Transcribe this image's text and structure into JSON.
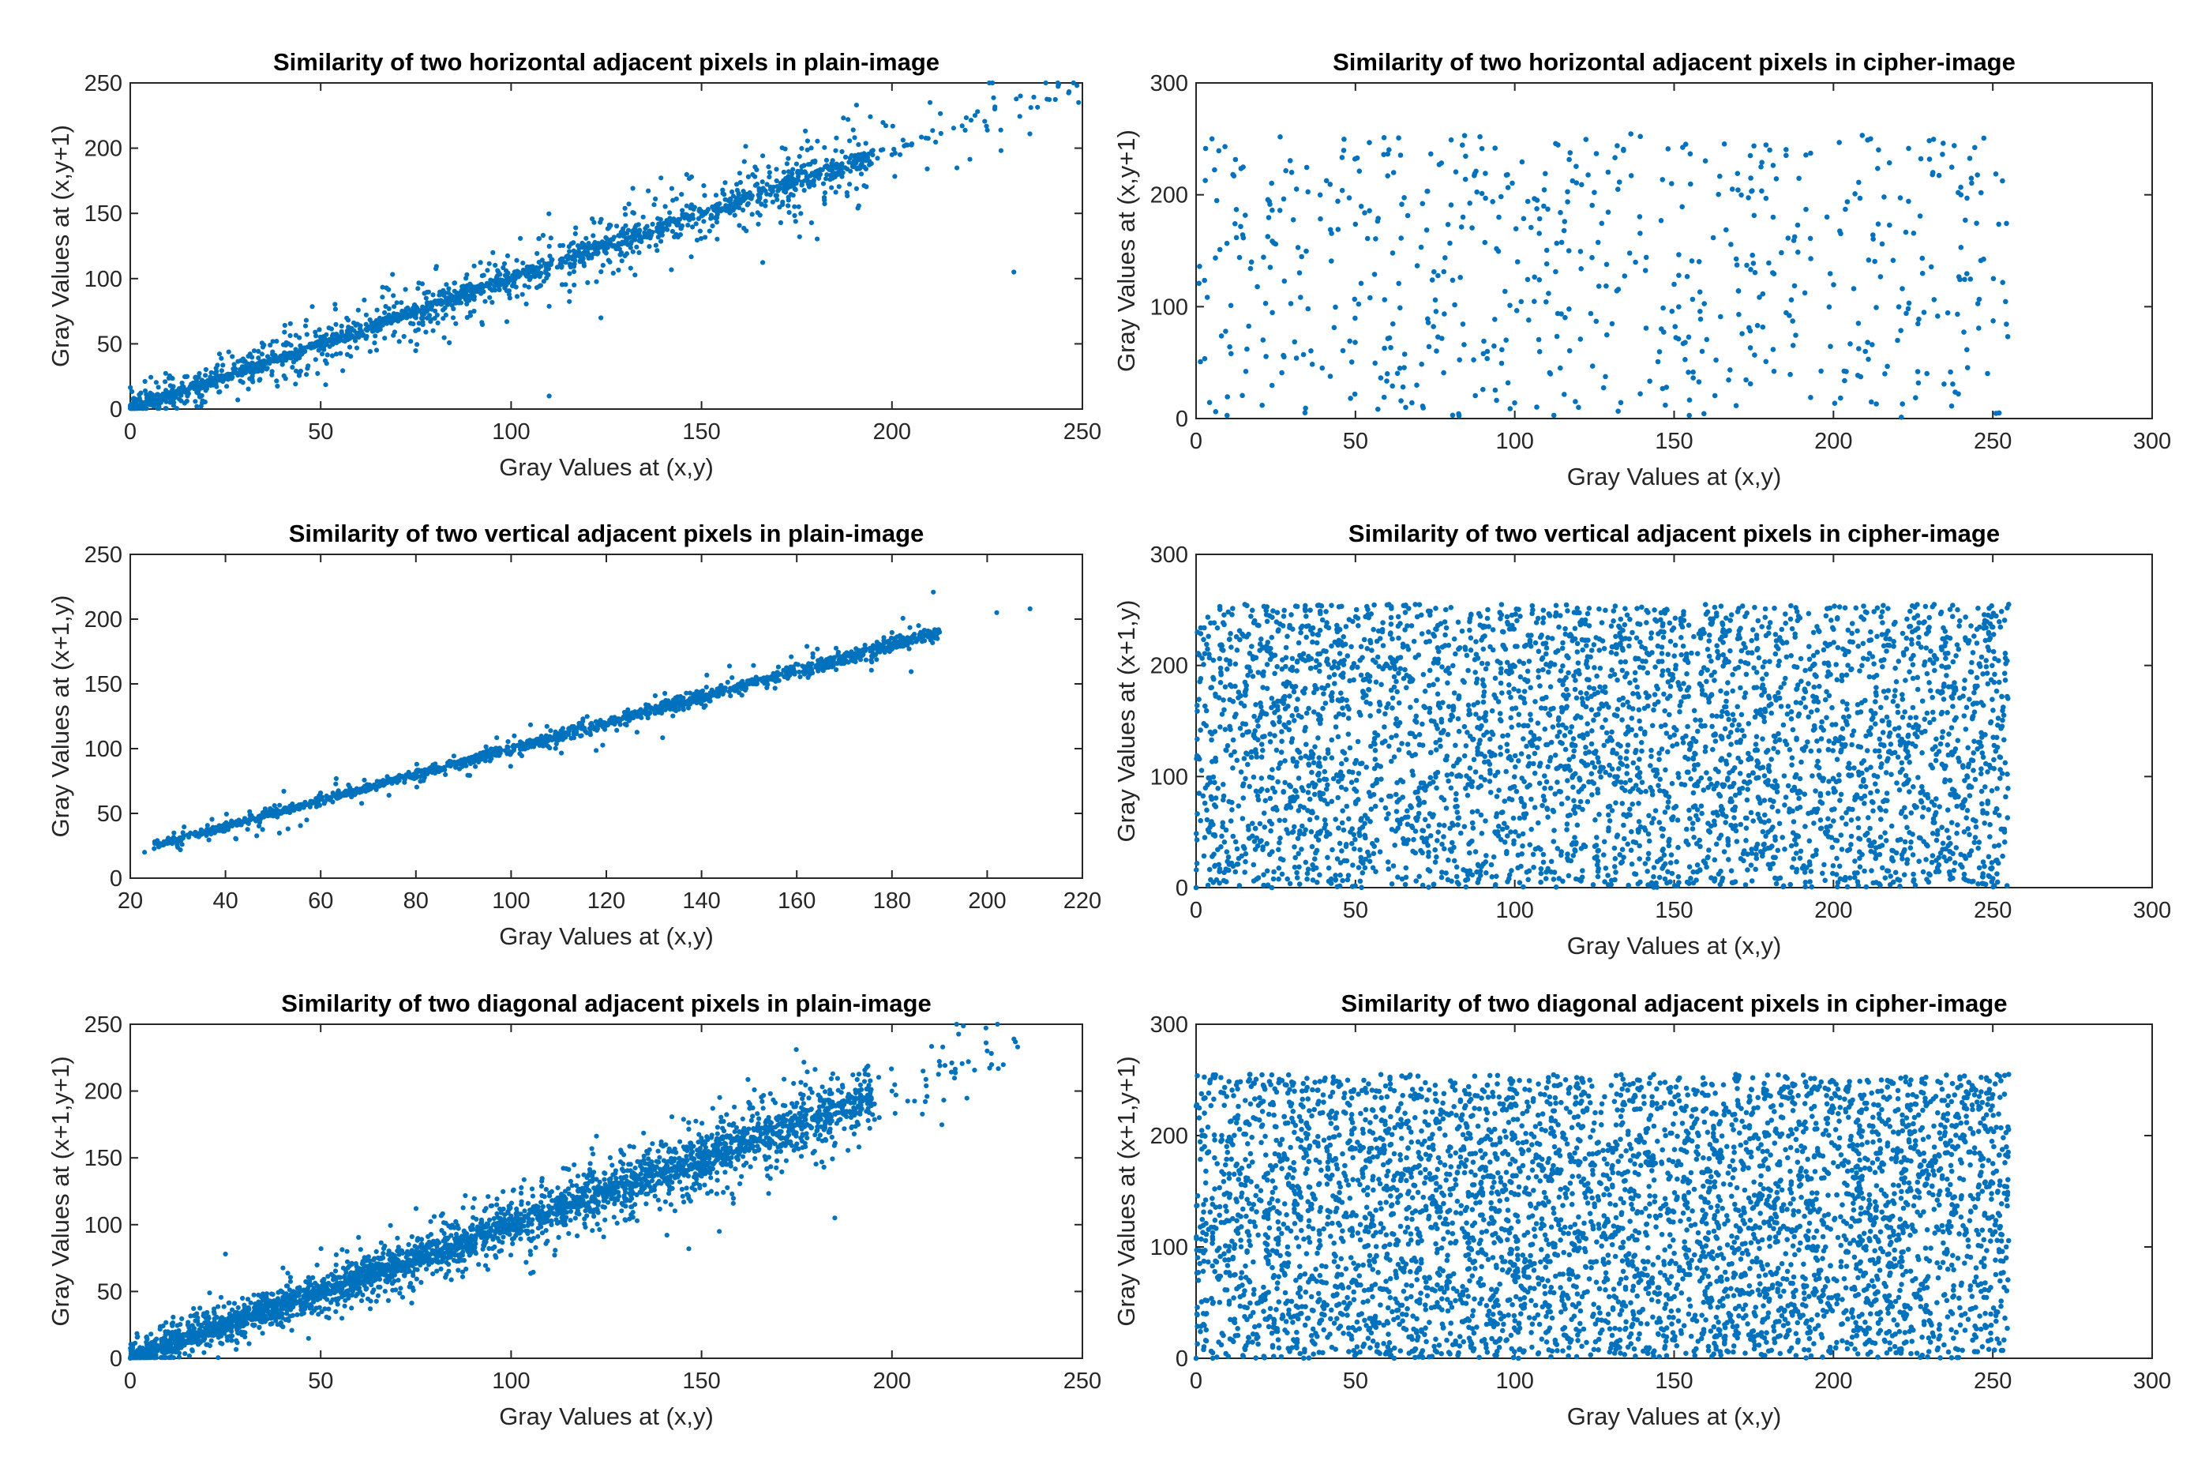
{
  "figure": {
    "marker_color": "#0072BD"
  },
  "chart_data": [
    {
      "type": "scatter",
      "title": "Similarity of two horizontal adjacent pixels in plain-image",
      "xlabel": "Gray Values at (x,y)",
      "ylabel": "Gray Values at (x,y+1)",
      "xlim": [
        0,
        250
      ],
      "ylim": [
        0,
        250
      ],
      "xticks": [
        0,
        50,
        100,
        150,
        200,
        250
      ],
      "yticks": [
        0,
        50,
        100,
        150,
        200,
        250
      ],
      "pattern": "correlated",
      "x_range": [
        0,
        250
      ],
      "density": "dense diagonal band",
      "points": [
        [
          0,
          2
        ],
        [
          15,
          10
        ],
        [
          30,
          28
        ],
        [
          45,
          42
        ],
        [
          60,
          55
        ],
        [
          75,
          70
        ],
        [
          90,
          85
        ],
        [
          105,
          100
        ],
        [
          120,
          118
        ],
        [
          135,
          132
        ],
        [
          150,
          148
        ],
        [
          165,
          160
        ],
        [
          180,
          182
        ],
        [
          190,
          190
        ],
        [
          200,
          195
        ],
        [
          210,
          235
        ],
        [
          227,
          230
        ],
        [
          232,
          105
        ],
        [
          249,
          235
        ],
        [
          110,
          10
        ]
      ]
    },
    {
      "type": "scatter",
      "title": "Similarity of two horizontal adjacent pixels in cipher-image",
      "xlabel": "Gray Values at (x,y)",
      "ylabel": "Gray Values at (x,y+1)",
      "xlim": [
        0,
        300
      ],
      "ylim": [
        0,
        300
      ],
      "xticks": [
        0,
        50,
        100,
        150,
        200,
        250,
        300
      ],
      "yticks": [
        0,
        100,
        200,
        300
      ],
      "pattern": "uniform",
      "x_range": [
        0,
        255
      ],
      "y_range": [
        0,
        255
      ],
      "density": "sparse",
      "points": [
        [
          5,
          250
        ],
        [
          30,
          220
        ],
        [
          60,
          40
        ],
        [
          95,
          180
        ],
        [
          120,
          10
        ],
        [
          150,
          120
        ],
        [
          180,
          240
        ],
        [
          210,
          60
        ],
        [
          240,
          200
        ],
        [
          252,
          5
        ]
      ]
    },
    {
      "type": "scatter",
      "title": "Similarity of two vertical adjacent pixels in plain-image",
      "xlabel": "Gray Values at (x,y)",
      "ylabel": "Gray Values at (x+1,y)",
      "xlim": [
        20,
        220
      ],
      "ylim": [
        0,
        250
      ],
      "xticks": [
        20,
        40,
        60,
        80,
        100,
        120,
        140,
        160,
        180,
        200,
        220
      ],
      "yticks": [
        0,
        50,
        100,
        150,
        200,
        250
      ],
      "pattern": "correlated",
      "x_range": [
        22,
        210
      ],
      "density": "narrow diagonal band",
      "points": [
        [
          23,
          20
        ],
        [
          30,
          28
        ],
        [
          50,
          48
        ],
        [
          70,
          68
        ],
        [
          90,
          88
        ],
        [
          110,
          108
        ],
        [
          130,
          130
        ],
        [
          150,
          150
        ],
        [
          170,
          170
        ],
        [
          190,
          190
        ],
        [
          202,
          205
        ],
        [
          209,
          208
        ]
      ]
    },
    {
      "type": "scatter",
      "title": "Similarity of two vertical adjacent pixels in cipher-image",
      "xlabel": "Gray Values at (x,y)",
      "ylabel": "Gray Values at (x+1,y)",
      "xlim": [
        0,
        300
      ],
      "ylim": [
        0,
        300
      ],
      "xticks": [
        0,
        50,
        100,
        150,
        200,
        250,
        300
      ],
      "yticks": [
        0,
        100,
        200,
        300
      ],
      "pattern": "uniform",
      "x_range": [
        0,
        255
      ],
      "y_range": [
        0,
        255
      ],
      "density": "dense",
      "points": [
        [
          0,
          0
        ],
        [
          255,
          255
        ],
        [
          128,
          128
        ],
        [
          60,
          200
        ],
        [
          200,
          60
        ]
      ]
    },
    {
      "type": "scatter",
      "title": "Similarity of two diagonal adjacent pixels in plain-image",
      "xlabel": "Gray Values at (x,y)",
      "ylabel": "Gray Values at (x+1,y+1)",
      "xlim": [
        0,
        250
      ],
      "ylim": [
        0,
        250
      ],
      "xticks": [
        0,
        50,
        100,
        150,
        200,
        250
      ],
      "yticks": [
        0,
        50,
        100,
        150,
        200,
        250
      ],
      "pattern": "correlated",
      "x_range": [
        0,
        235
      ],
      "density": "dense wide diagonal band",
      "points": [
        [
          0,
          0
        ],
        [
          25,
          78
        ],
        [
          50,
          48
        ],
        [
          75,
          72
        ],
        [
          100,
          98
        ],
        [
          125,
          122
        ],
        [
          150,
          150
        ],
        [
          175,
          175
        ],
        [
          185,
          105
        ],
        [
          200,
          200
        ],
        [
          225,
          230
        ],
        [
          233,
          233
        ]
      ]
    },
    {
      "type": "scatter",
      "title": "Similarity of two diagonal adjacent pixels in cipher-image",
      "xlabel": "Gray Values at (x,y)",
      "ylabel": "Gray Values at (x+1,y+1)",
      "xlim": [
        0,
        300
      ],
      "ylim": [
        0,
        300
      ],
      "xticks": [
        0,
        50,
        100,
        150,
        200,
        250,
        300
      ],
      "yticks": [
        0,
        100,
        200,
        300
      ],
      "pattern": "uniform",
      "x_range": [
        0,
        255
      ],
      "y_range": [
        0,
        255
      ],
      "density": "very dense",
      "points": [
        [
          0,
          0
        ],
        [
          255,
          255
        ],
        [
          128,
          128
        ],
        [
          40,
          230
        ],
        [
          220,
          30
        ]
      ]
    }
  ]
}
